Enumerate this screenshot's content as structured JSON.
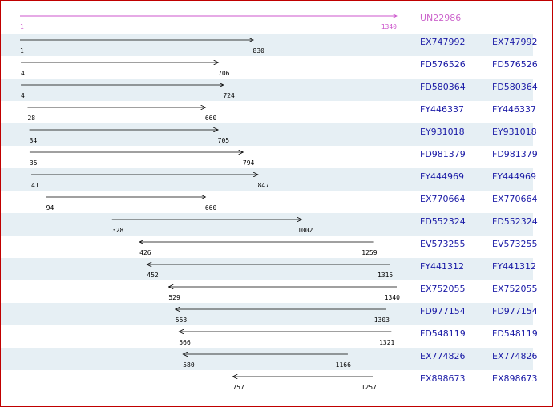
{
  "reference": {
    "name": "UN22986",
    "start": 1,
    "end": 1340
  },
  "alignments": [
    {
      "id": "EX747992",
      "link": "EX747992",
      "start": 1,
      "end": 830,
      "direction": "+"
    },
    {
      "id": "FD576526",
      "link": "FD576526",
      "start": 4,
      "end": 706,
      "direction": "+"
    },
    {
      "id": "FD580364",
      "link": "FD580364",
      "start": 4,
      "end": 724,
      "direction": "+"
    },
    {
      "id": "FY446337",
      "link": "FY446337",
      "start": 28,
      "end": 660,
      "direction": "+"
    },
    {
      "id": "EY931018",
      "link": "EY931018",
      "start": 34,
      "end": 705,
      "direction": "+"
    },
    {
      "id": "FD981379",
      "link": "FD981379",
      "start": 35,
      "end": 794,
      "direction": "+"
    },
    {
      "id": "FY444969",
      "link": "FY444969",
      "start": 41,
      "end": 847,
      "direction": "+"
    },
    {
      "id": "EX770664",
      "link": "EX770664",
      "start": 94,
      "end": 660,
      "direction": "+"
    },
    {
      "id": "FD552324",
      "link": "FD552324",
      "start": 328,
      "end": 1002,
      "direction": "+"
    },
    {
      "id": "EV573255",
      "link": "EV573255",
      "start": 426,
      "end": 1259,
      "direction": "-"
    },
    {
      "id": "FY441312",
      "link": "FY441312",
      "start": 452,
      "end": 1315,
      "direction": "-"
    },
    {
      "id": "EX752055",
      "link": "EX752055",
      "start": 529,
      "end": 1340,
      "direction": "-"
    },
    {
      "id": "FD977154",
      "link": "FD977154",
      "start": 553,
      "end": 1303,
      "direction": "-"
    },
    {
      "id": "FD548119",
      "link": "FD548119",
      "start": 566,
      "end": 1321,
      "direction": "-"
    },
    {
      "id": "EX774826",
      "link": "EX774826",
      "start": 580,
      "end": 1166,
      "direction": "-"
    },
    {
      "id": "EX898673",
      "link": "EX898673",
      "start": 757,
      "end": 1257,
      "direction": "-"
    }
  ]
}
